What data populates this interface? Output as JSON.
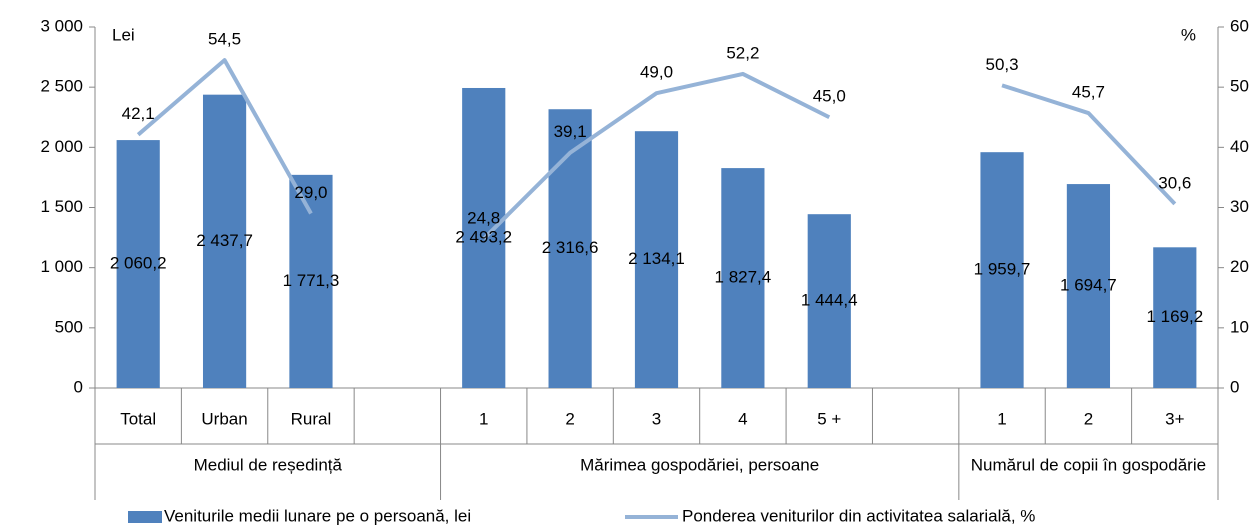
{
  "chart_data": {
    "type": "bar-line",
    "categories": [
      "Total",
      "Urban",
      "Rural",
      null,
      "1",
      "2",
      "3",
      "4",
      "5 +",
      null,
      "1",
      "2",
      "3+"
    ],
    "groups": [
      {
        "label": "Mediul de reședință",
        "span": 4
      },
      {
        "label": "Mărimea gospodăriei, persoane",
        "span": 6
      },
      {
        "label": "Numărul de copii în gospodărie",
        "span": 3
      }
    ],
    "y_label": "Lei",
    "y2_label": "%",
    "series": [
      {
        "name": "Veniturile medii lunare pe o persoană, lei",
        "type": "bar",
        "color": "#4f81bd",
        "values": [
          2060.2,
          2437.7,
          1771.3,
          null,
          2493.2,
          2316.6,
          2134.1,
          1827.4,
          1444.4,
          null,
          1959.7,
          1694.7,
          1169.2
        ],
        "value_labels": [
          "2 060,2",
          "2 437,7",
          "1 771,3",
          null,
          "2 493,2",
          "2 316,6",
          "2 134,1",
          "1 827,4",
          "1 444,4",
          null,
          "1 959,7",
          "1 694,7",
          "1 169,2"
        ]
      },
      {
        "name": "Ponderea veniturilor din activitatea salarială, %",
        "type": "line",
        "axis": "y2",
        "color": "#95b3d7",
        "values": [
          42.1,
          54.5,
          29.0,
          null,
          24.8,
          39.1,
          49.0,
          52.2,
          45.0,
          null,
          50.3,
          45.7,
          30.6
        ],
        "value_labels": [
          "42,1",
          "54,5",
          "29,0",
          null,
          "24,8",
          "39,1",
          "49,0",
          "52,2",
          "45,0",
          null,
          "50,3",
          "45,7",
          "30,6"
        ]
      }
    ],
    "ylim": [
      0,
      3000
    ],
    "yticks": [
      0,
      500,
      {
        "value": 1000,
        "label": "1 000"
      },
      {
        "value": 1500,
        "label": "1 500"
      },
      {
        "value": 2000,
        "label": "2 000"
      },
      {
        "value": 2500,
        "label": "2 500"
      },
      {
        "value": 3000,
        "label": "3 000"
      }
    ],
    "y2lim": [
      0,
      60
    ],
    "y2ticks": [
      0,
      10,
      20,
      30,
      40,
      50,
      60
    ]
  }
}
